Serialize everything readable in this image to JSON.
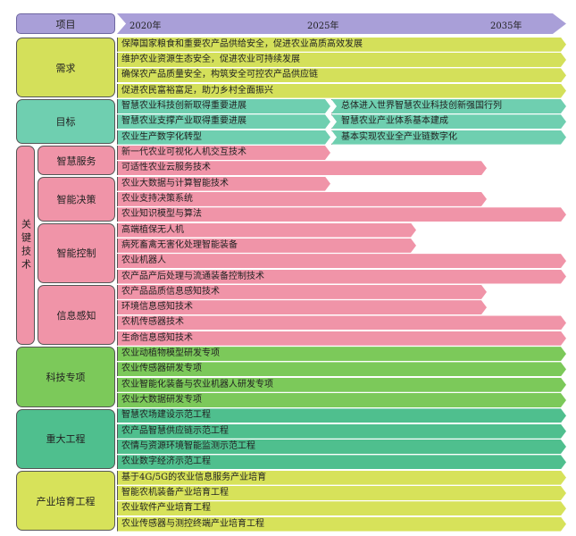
{
  "header": {
    "label": "项目",
    "years": [
      "2020年",
      "2025年",
      "2035年"
    ],
    "color": "#a99fd8"
  },
  "sections": [
    {
      "label": "需求",
      "color": "#d4e05a",
      "rows": [
        {
          "segments": [
            {
              "text": "保障国家粮食和重要农产品供给安全，促进农业高质高效发展",
              "end": "2035"
            }
          ]
        },
        {
          "segments": [
            {
              "text": "维护农业资源生态安全，促进农业可持续发展",
              "end": "2035"
            }
          ]
        },
        {
          "segments": [
            {
              "text": "确保农产品质量安全，构筑安全可控农产品供应链",
              "end": "2035"
            }
          ]
        },
        {
          "segments": [
            {
              "text": "促进农民富裕富足，助力乡村全面振兴",
              "end": "2035"
            }
          ]
        }
      ]
    },
    {
      "label": "目标",
      "color": "#6fcfb0",
      "rows": [
        {
          "segments": [
            {
              "text": "智慧农业科技创新取得重要进展",
              "end": "2025"
            },
            {
              "text": "总体进入世界智慧农业科技创新强国行列",
              "end": "2035"
            }
          ]
        },
        {
          "segments": [
            {
              "text": "智慧农业支撑产业取得重要进展",
              "end": "2025"
            },
            {
              "text": "智慧农业产业体系基本建成",
              "end": "2035"
            }
          ]
        },
        {
          "segments": [
            {
              "text": "农业生产数字化转型",
              "end": "2025"
            },
            {
              "text": "基本实现农业全产业链数字化",
              "end": "2035"
            }
          ]
        }
      ]
    },
    {
      "label": "关键技术",
      "color": "#f094a8",
      "subgroups": [
        {
          "label": "智慧服务",
          "rows": [
            {
              "segments": [
                {
                  "text": "新一代农业可视化人机交互技术",
                  "end": "2025"
                }
              ]
            },
            {
              "segments": [
                {
                  "text": "可适性农业云服务技术",
                  "end": "2033"
                }
              ]
            }
          ]
        },
        {
          "label": "智能决策",
          "rows": [
            {
              "segments": [
                {
                  "text": "农业大数据与计算智能技术",
                  "end": "2025"
                }
              ]
            },
            {
              "segments": [
                {
                  "text": "农业支持决策系统",
                  "end": "2033"
                }
              ]
            },
            {
              "segments": [
                {
                  "text": "农业知识模型与算法",
                  "end": "2035"
                }
              ]
            }
          ]
        },
        {
          "label": "智能控制",
          "rows": [
            {
              "segments": [
                {
                  "text": "高端植保无人机",
                  "end": "2030"
                }
              ]
            },
            {
              "segments": [
                {
                  "text": "病死畜禽无害化处理智能装备",
                  "end": "2030"
                }
              ]
            },
            {
              "segments": [
                {
                  "text": "农业机器人",
                  "end": "2035"
                }
              ]
            },
            {
              "segments": [
                {
                  "text": "农产品产后处理与流通装备控制技术",
                  "end": "2035"
                }
              ]
            }
          ]
        },
        {
          "label": "信息感知",
          "rows": [
            {
              "segments": [
                {
                  "text": "农产品品质信息感知技术",
                  "end": "2033"
                }
              ]
            },
            {
              "segments": [
                {
                  "text": "环境信息感知技术",
                  "end": "2033"
                }
              ]
            },
            {
              "segments": [
                {
                  "text": "农机传感器技术",
                  "end": "2035"
                }
              ]
            },
            {
              "segments": [
                {
                  "text": "生命信息感知技术",
                  "end": "2035"
                }
              ]
            }
          ]
        }
      ]
    },
    {
      "label": "科技专项",
      "color": "#7cc95a",
      "rows": [
        {
          "segments": [
            {
              "text": "农业动植物模型研发专项",
              "end": "2035"
            }
          ]
        },
        {
          "segments": [
            {
              "text": "农业传感器研发专项",
              "end": "2035"
            }
          ]
        },
        {
          "segments": [
            {
              "text": "农业智能化装备与农业机器人研发专项",
              "end": "2035"
            }
          ]
        },
        {
          "segments": [
            {
              "text": "农业大数据研发专项",
              "end": "2035"
            }
          ]
        }
      ]
    },
    {
      "label": "重大工程",
      "color": "#4fbf8e",
      "rows": [
        {
          "segments": [
            {
              "text": "智慧农场建设示范工程",
              "end": "2035"
            }
          ]
        },
        {
          "segments": [
            {
              "text": "农产品智慧供应链示范工程",
              "end": "2035"
            }
          ]
        },
        {
          "segments": [
            {
              "text": "农情与资源环境智能监测示范工程",
              "end": "2035"
            }
          ]
        },
        {
          "segments": [
            {
              "text": "农业数字经济示范工程",
              "end": "2035"
            }
          ]
        }
      ]
    },
    {
      "label": "产业培育工程",
      "color": "#d7e25a",
      "rows": [
        {
          "segments": [
            {
              "text": "基于4G/5G的农业信息服务产业培育",
              "end": "2035"
            }
          ]
        },
        {
          "segments": [
            {
              "text": "智能农机装备产业培育工程",
              "end": "2035"
            }
          ]
        },
        {
          "segments": [
            {
              "text": "农业软件产业培育工程",
              "end": "2035"
            }
          ]
        },
        {
          "segments": [
            {
              "text": "农业传感器与测控终端产业培育工程",
              "end": "2035"
            }
          ]
        }
      ]
    }
  ]
}
